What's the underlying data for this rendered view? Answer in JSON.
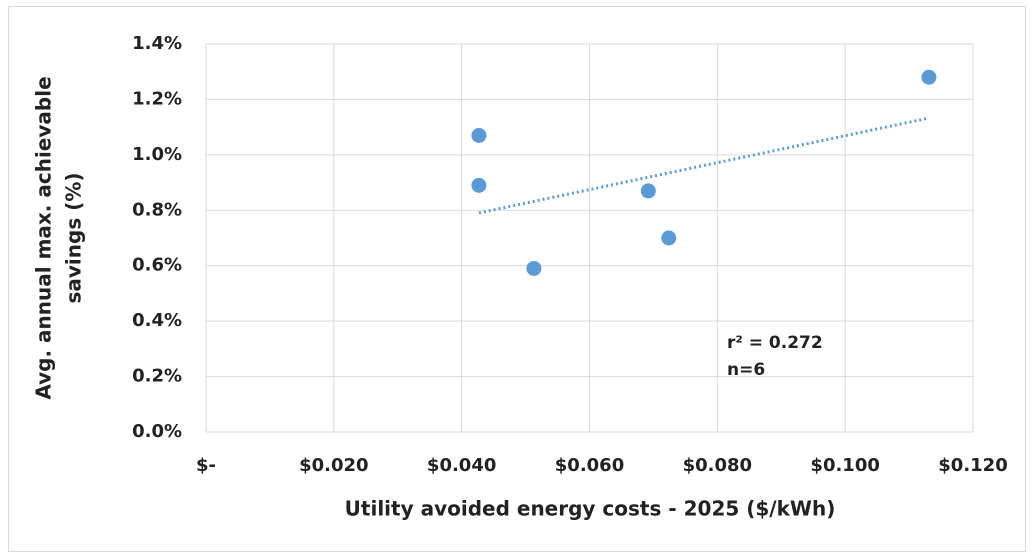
{
  "chart_data": {
    "type": "scatter",
    "xlabel": "Utility avoided energy costs - 2025 ($/kWh)",
    "ylabel": [
      "Avg. annual max. achievable",
      "savings (%)"
    ],
    "series": [
      {
        "color": "#5b9bd5",
        "x": [
          0.0427,
          0.0427,
          0.0513,
          0.0692,
          0.0724,
          0.1131
        ],
        "values": [
          1.07,
          0.89,
          0.59,
          0.87,
          0.7,
          1.28
        ]
      }
    ],
    "trendline": true,
    "annotations": [
      "r² = 0.272",
      "n=6"
    ],
    "xlim": [
      0,
      0.12
    ],
    "xticks": [
      {
        "value": 0,
        "label": "$-"
      },
      {
        "value": 0.02,
        "label": "$0.020"
      },
      {
        "value": 0.04,
        "label": "$0.040"
      },
      {
        "value": 0.06,
        "label": "$0.060"
      },
      {
        "value": 0.08,
        "label": "$0.080"
      },
      {
        "value": 0.1,
        "label": "$0.100"
      },
      {
        "value": 0.12,
        "label": "$0.120"
      }
    ],
    "ylim": [
      0,
      1.4
    ],
    "yticks": [
      {
        "value": 0,
        "label": "0.0%"
      },
      {
        "value": 0.2,
        "label": "0.2%"
      },
      {
        "value": 0.4,
        "label": "0.4%"
      },
      {
        "value": 0.6,
        "label": "0.6%"
      },
      {
        "value": 0.8,
        "label": "0.8%"
      },
      {
        "value": 1.0,
        "label": "1.0%"
      },
      {
        "value": 1.2,
        "label": "1.2%"
      },
      {
        "value": 1.4,
        "label": "1.4%"
      }
    ],
    "grid": true
  }
}
